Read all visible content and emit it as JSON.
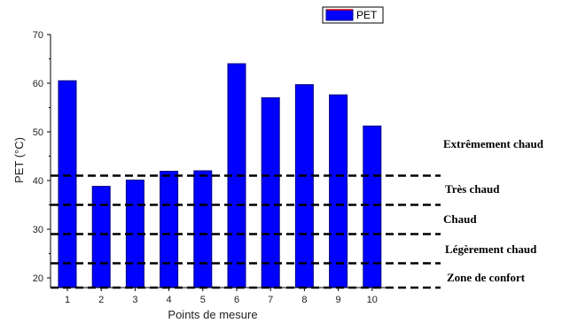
{
  "chart_data": {
    "type": "bar",
    "categories": [
      "1",
      "2",
      "3",
      "4",
      "5",
      "6",
      "7",
      "8",
      "9",
      "10"
    ],
    "series": [
      {
        "name": "PET",
        "values": [
          60.5,
          38.8,
          40.1,
          41.9,
          42.0,
          64.0,
          57.0,
          59.7,
          57.6,
          51.2
        ]
      }
    ],
    "xlabel": "Points de mesure",
    "ylabel": "PET (°C)",
    "ylim": [
      18,
      70
    ],
    "yticks": [
      "20",
      "30",
      "40",
      "50",
      "60",
      "70"
    ],
    "thresholds": [
      18,
      23,
      29,
      35,
      41
    ],
    "zones": [
      "Extrêmement chaud",
      "Très chaud",
      "Chaud",
      "Légèrement chaud",
      "Zone de confort"
    ],
    "legend_position": "top-right",
    "grid": false,
    "colors": {
      "bar_fill": "#0000ff",
      "bar_stroke": "#000080",
      "threshold_line": "#000000"
    }
  }
}
